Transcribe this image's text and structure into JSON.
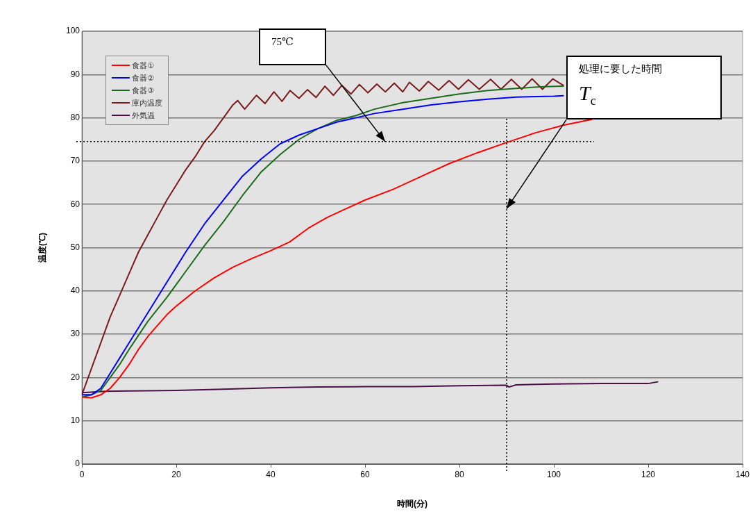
{
  "chart_data": {
    "type": "line",
    "xlabel": "時間(分)",
    "ylabel": "温度(℃)",
    "xlim": [
      0,
      140
    ],
    "xticks": [
      0,
      20,
      40,
      60,
      80,
      100,
      120,
      140
    ],
    "ylim": [
      0,
      100
    ],
    "yticks": [
      0,
      10,
      20,
      30,
      40,
      50,
      60,
      70,
      80,
      90,
      100
    ],
    "grid": "y",
    "legend": "top left",
    "marker": "none",
    "line_style": "solid",
    "ref_lines": [
      {
        "axis": "y",
        "value": 74.5,
        "line_style": "dotted",
        "color": "#000000"
      },
      {
        "axis": "x",
        "value": 90,
        "line_style": "dotted",
        "color": "#000000"
      }
    ],
    "annotations": [
      "75℃",
      {
        "text": "処理に要した時間\nT$_{c}$",
        "x": 90,
        "y": 59
      }
    ],
    "series": [
      {
        "name": "食器①",
        "color": "#ff0000",
        "x": [
          0,
          2,
          4,
          6,
          8,
          10,
          12,
          14,
          16,
          18,
          20,
          24,
          28,
          32,
          36,
          40,
          44,
          48,
          52,
          56,
          60,
          66,
          72,
          78,
          84,
          90,
          96,
          102,
          108
        ],
        "values": [
          15.5,
          15.3,
          16,
          17.5,
          20,
          23,
          26.5,
          29.5,
          32,
          34.5,
          36.5,
          40,
          43,
          45.5,
          47.5,
          49.3,
          51.3,
          54.5,
          57,
          59,
          61,
          63.5,
          66.5,
          69.5,
          72,
          74.3,
          76.5,
          78.3,
          79.6
        ]
      },
      {
        "name": "食器②",
        "color": "#0000ff",
        "x": [
          0,
          2,
          4,
          6,
          8,
          10,
          14,
          18,
          22,
          26,
          30,
          34,
          38,
          42,
          46,
          50,
          54,
          58,
          62,
          68,
          74,
          80,
          86,
          92,
          100,
          102
        ],
        "values": [
          16,
          16,
          17.5,
          21,
          24.5,
          28,
          35,
          42,
          49,
          55.5,
          61,
          66.5,
          70.5,
          74,
          76,
          77.5,
          79,
          80,
          81,
          82,
          83,
          83.7,
          84.3,
          84.8,
          85,
          85.1
        ]
      },
      {
        "name": "食器③",
        "color": "#1a6b1a",
        "x": [
          0,
          2,
          4,
          6,
          8,
          10,
          14,
          18,
          22,
          26,
          30,
          34,
          38,
          42,
          46,
          50,
          54,
          58,
          62,
          68,
          74,
          80,
          86,
          92,
          98,
          102
        ],
        "values": [
          15.5,
          16,
          17,
          20,
          23,
          26.5,
          33,
          38.5,
          44.5,
          50.5,
          56,
          62,
          67.5,
          71.5,
          75,
          77.5,
          79.4,
          80.5,
          82,
          83.5,
          84.5,
          85.5,
          86.3,
          86.8,
          87.2,
          87.3
        ]
      },
      {
        "name": "庫内温度",
        "color": "#7a1a1a",
        "x": [
          0,
          2,
          4,
          6,
          8,
          10,
          12,
          14,
          16,
          18,
          20,
          22,
          24,
          26,
          28,
          30,
          32,
          33,
          34.5,
          37,
          38.8,
          40.7,
          42.4,
          44.1,
          46,
          47.8,
          49.6,
          51.5,
          53.3,
          55.1,
          57,
          58.8,
          60.6,
          62.5,
          64.3,
          66.2,
          68,
          69.4,
          71.5,
          73.4,
          75.6,
          77.8,
          79.8,
          81.9,
          84.2,
          86.6,
          88.8,
          91,
          93.2,
          95.4,
          97.6,
          99.8,
          102
        ],
        "values": [
          16,
          22,
          28,
          34,
          39,
          44,
          49,
          53,
          57,
          61,
          64.5,
          68,
          71,
          74.5,
          77,
          80,
          83,
          84,
          82,
          85.2,
          83.3,
          86,
          83.8,
          86.3,
          84.5,
          86.5,
          84.7,
          87.3,
          85.2,
          87.5,
          85.5,
          87.7,
          85.8,
          87.8,
          86,
          88,
          86,
          88.2,
          86.2,
          88.4,
          86.4,
          88.6,
          86.6,
          88.8,
          86.6,
          88.9,
          86.6,
          88.9,
          86.6,
          89,
          86.6,
          89,
          87.5
        ]
      },
      {
        "name": "外気温",
        "color": "#4a1045",
        "x": [
          0,
          5,
          10,
          20,
          30,
          40,
          50,
          60,
          70,
          80,
          90,
          90.5,
          92,
          100,
          110,
          120,
          122
        ],
        "values": [
          16.5,
          16.8,
          16.9,
          17,
          17.3,
          17.6,
          17.8,
          17.9,
          17.9,
          18.1,
          18.2,
          17.8,
          18.3,
          18.5,
          18.6,
          18.6,
          19
        ]
      }
    ]
  }
}
